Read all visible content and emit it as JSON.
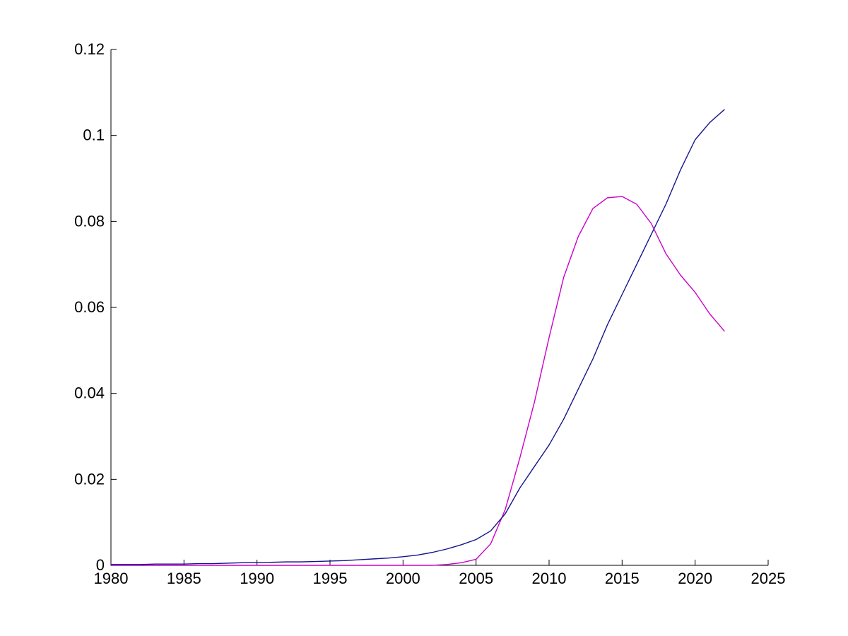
{
  "figure": {
    "background": "#ffffff",
    "axis_color": "#000000"
  },
  "chart_data": {
    "type": "line",
    "title": "",
    "xlabel": "",
    "ylabel": "",
    "xlim": [
      1980,
      2025
    ],
    "ylim": [
      0,
      0.12
    ],
    "grid": false,
    "legend": null,
    "box": false,
    "xticks": {
      "values": [
        1980,
        1985,
        1990,
        1995,
        2000,
        2005,
        2010,
        2015,
        2020,
        2025
      ],
      "labels": [
        "1980",
        "1985",
        "1990",
        "1995",
        "2000",
        "2005",
        "2010",
        "2015",
        "2020",
        "2025"
      ]
    },
    "yticks": {
      "values": [
        0,
        0.02,
        0.04,
        0.06,
        0.08,
        0.1,
        0.12
      ],
      "labels": [
        "0",
        "0.02",
        "0.04",
        "0.06",
        "0.08",
        "0.1",
        "0.12"
      ]
    },
    "x": [
      1980,
      1981,
      1982,
      1983,
      1984,
      1985,
      1986,
      1987,
      1988,
      1989,
      1990,
      1991,
      1992,
      1993,
      1994,
      1995,
      1996,
      1997,
      1998,
      1999,
      2000,
      2001,
      2002,
      2003,
      2004,
      2005,
      2006,
      2007,
      2008,
      2009,
      2010,
      2011,
      2012,
      2013,
      2014,
      2015,
      2016,
      2017,
      2018,
      2019,
      2020,
      2021,
      2022
    ],
    "series": [
      {
        "name": "magenta-line",
        "color": "#CC00CC",
        "values": [
          0,
          0,
          0,
          0,
          0,
          0,
          0,
          0,
          0,
          0,
          0,
          0,
          0,
          0,
          0,
          0,
          0,
          0,
          0,
          0,
          0,
          0,
          0,
          0.0002,
          0.0006,
          0.0014,
          0.005,
          0.013,
          0.025,
          0.038,
          0.053,
          0.067,
          0.0765,
          0.083,
          0.0855,
          0.0858,
          0.084,
          0.0795,
          0.0725,
          0.0675,
          0.0635,
          0.0585,
          0.0545
        ]
      },
      {
        "name": "navy-line",
        "color": "#14148C",
        "values": [
          0.0002,
          0.0002,
          0.0002,
          0.0003,
          0.0003,
          0.0003,
          0.0004,
          0.0004,
          0.0005,
          0.0006,
          0.0006,
          0.0007,
          0.0008,
          0.0008,
          0.0009,
          0.001,
          0.0011,
          0.0013,
          0.0015,
          0.0017,
          0.002,
          0.0024,
          0.003,
          0.0038,
          0.0048,
          0.006,
          0.008,
          0.012,
          0.018,
          0.023,
          0.028,
          0.034,
          0.041,
          0.048,
          0.056,
          0.063,
          0.07,
          0.077,
          0.084,
          0.092,
          0.099,
          0.103,
          0.106
        ]
      }
    ]
  }
}
